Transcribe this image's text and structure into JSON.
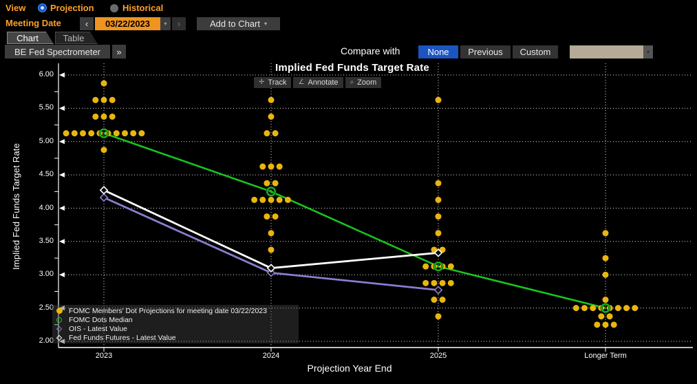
{
  "header": {
    "view_label": "View",
    "view_options": [
      {
        "label": "Projection",
        "selected": true
      },
      {
        "label": "Historical",
        "selected": false
      }
    ],
    "meeting_date_label": "Meeting Date",
    "prev_arrow": "‹",
    "next_arrow": "›",
    "date_value": "03/22/2023",
    "date_dropdown_arrow": "▾",
    "add_to_chart_label": "Add to Chart",
    "add_to_chart_arrow": "▾"
  },
  "tabs": [
    {
      "label": "Chart",
      "active": true
    },
    {
      "label": "Table",
      "active": false
    }
  ],
  "toolbar": {
    "left_button_label": "BE Fed Spectrometer",
    "expand_button_label": "»",
    "compare_label": "Compare with",
    "compare_options": [
      {
        "label": "None",
        "selected": true
      },
      {
        "label": "Previous",
        "selected": false
      },
      {
        "label": "Custom",
        "selected": false
      }
    ],
    "dropdown_value": "",
    "dropdown_arrow": "▾"
  },
  "chart": {
    "title": "Implied Fed Funds Target Rate",
    "buttons": [
      {
        "icon": "✛",
        "label": "Track"
      },
      {
        "icon": "∠",
        "label": "Annotate"
      },
      {
        "icon": "⌕",
        "label": "Zoom"
      }
    ],
    "ylabel": "Implied Fed Funds Target Rate",
    "xlabel": "Projection Year End"
  },
  "colors": {
    "accent_orange": "#ffa028",
    "date_field_orange": "#ef941f",
    "selected_blue": "#1b55c0",
    "dropdown_tan": "#b4aa96",
    "dots_yellow": "#e9b60e",
    "median_green": "#17c420",
    "ois_purple": "#8d7cd0",
    "futures_white": "#ffffff"
  },
  "chart_data": {
    "type": "scatter",
    "title": "Implied Fed Funds Target Rate",
    "xlabel": "Projection Year End",
    "ylabel": "Implied Fed Funds Target Rate",
    "categories": [
      "2023",
      "2024",
      "2025",
      "Longer Term"
    ],
    "ylim": [
      2.0,
      6.0
    ],
    "y_ticks": [
      6.0,
      5.5,
      5.0,
      4.5,
      4.0,
      3.5,
      3.0,
      2.5,
      2.0
    ],
    "grid": true,
    "legend_position": "bottom-left",
    "series": [
      {
        "name": "FOMC Members' Dot Projections for meeting date 03/22/2023",
        "type": "dot-distribution",
        "marker": "filled-circle",
        "color": "#e9b60e",
        "distributions": [
          {
            "category": "2023",
            "dots": [
              {
                "rate": 5.875,
                "count": 1
              },
              {
                "rate": 5.625,
                "count": 3
              },
              {
                "rate": 5.375,
                "count": 3
              },
              {
                "rate": 5.125,
                "count": 10
              },
              {
                "rate": 4.875,
                "count": 1
              }
            ]
          },
          {
            "category": "2024",
            "dots": [
              {
                "rate": 5.625,
                "count": 1
              },
              {
                "rate": 5.375,
                "count": 1
              },
              {
                "rate": 5.125,
                "count": 2
              },
              {
                "rate": 4.625,
                "count": 3
              },
              {
                "rate": 4.375,
                "count": 2
              },
              {
                "rate": 4.125,
                "count": 5
              },
              {
                "rate": 3.875,
                "count": 2
              },
              {
                "rate": 3.625,
                "count": 1
              },
              {
                "rate": 3.375,
                "count": 1
              }
            ]
          },
          {
            "category": "2025",
            "dots": [
              {
                "rate": 5.625,
                "count": 1
              },
              {
                "rate": 4.375,
                "count": 1
              },
              {
                "rate": 4.125,
                "count": 1
              },
              {
                "rate": 3.875,
                "count": 1
              },
              {
                "rate": 3.625,
                "count": 1
              },
              {
                "rate": 3.375,
                "count": 2
              },
              {
                "rate": 3.125,
                "count": 4
              },
              {
                "rate": 2.875,
                "count": 4
              },
              {
                "rate": 2.625,
                "count": 2
              },
              {
                "rate": 2.375,
                "count": 1
              }
            ]
          },
          {
            "category": "Longer Term",
            "dots": [
              {
                "rate": 3.625,
                "count": 1
              },
              {
                "rate": 3.25,
                "count": 1
              },
              {
                "rate": 3.0,
                "count": 1
              },
              {
                "rate": 2.625,
                "count": 1
              },
              {
                "rate": 2.5,
                "count": 8
              },
              {
                "rate": 2.375,
                "count": 2
              },
              {
                "rate": 2.25,
                "count": 3
              }
            ]
          }
        ]
      },
      {
        "name": "FOMC Dots Median",
        "type": "line",
        "marker": "open-circle",
        "color": "#17c420",
        "values": [
          5.125,
          4.25,
          3.125,
          2.5
        ]
      },
      {
        "name": "OIS - Latest Value",
        "type": "line",
        "marker": "open-diamond",
        "color": "#8d7cd0",
        "values": [
          4.16,
          3.03,
          2.77,
          null
        ]
      },
      {
        "name": "Fed Funds Futures - Latest Value",
        "type": "line",
        "marker": "open-diamond",
        "color": "#ffffff",
        "values": [
          4.27,
          3.1,
          3.33,
          null
        ]
      }
    ]
  }
}
